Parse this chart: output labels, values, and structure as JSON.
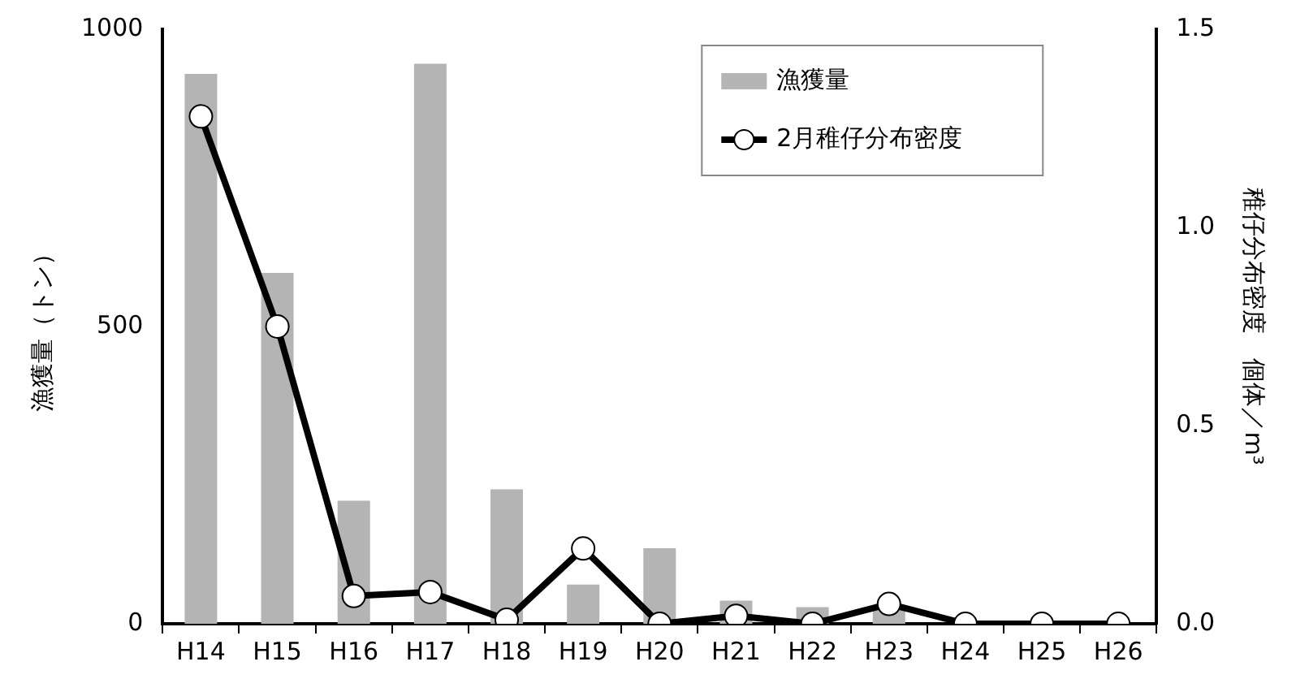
{
  "chart_data": {
    "type": "bar",
    "categories": [
      "H14",
      "H15",
      "H16",
      "H17",
      "H18",
      "H19",
      "H20",
      "H21",
      "H22",
      "H23",
      "H24",
      "H25",
      "H26"
    ],
    "ylabel": "漁獲量（トン）",
    "y2label": "稚仔分布密度　個体／m³",
    "series": [
      {
        "name": "漁獲量",
        "color": "#b4b4b4",
        "values": [
          925,
          590,
          207,
          942,
          226,
          66,
          127,
          39,
          28,
          25,
          0,
          0,
          0
        ]
      },
      {
        "name": "2月稚仔分布密度",
        "type": "line",
        "axis": "y2",
        "color": "#000000",
        "marker": "circle",
        "values": [
          1.28,
          0.75,
          0.07,
          0.08,
          0.01,
          0.19,
          0,
          0.02,
          0,
          0.05,
          0,
          0,
          0
        ]
      }
    ],
    "ylim": [
      0,
      1000
    ],
    "yticks": [
      0,
      500,
      1000
    ],
    "y2lim": [
      0,
      1.5
    ],
    "y2ticks": [
      {
        "value": 0,
        "label": "0.0"
      },
      {
        "value": 0.5,
        "label": "0.5"
      },
      {
        "value": 1,
        "label": "1.0"
      },
      {
        "value": 1.5,
        "label": "1.5"
      }
    ],
    "legend": "top right",
    "grid": false
  }
}
